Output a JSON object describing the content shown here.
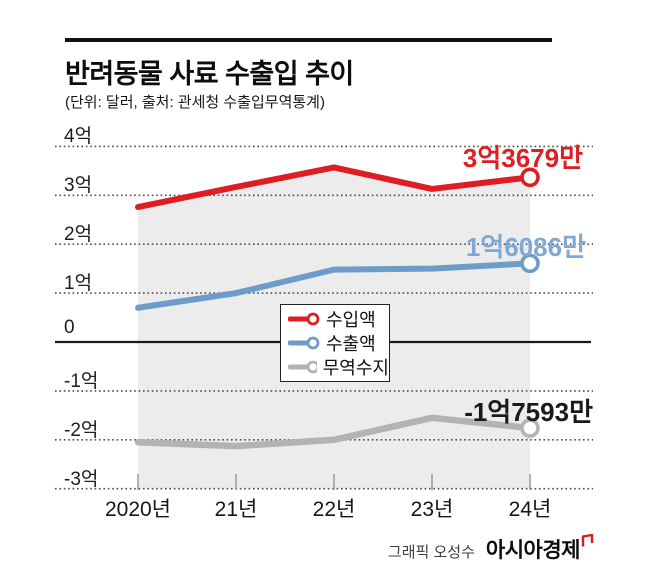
{
  "header": {
    "title": "반려동물 사료 수출입 추이",
    "subtitle": "(단위: 달러, 출처: 관세청 수출입무역통계)"
  },
  "chart_data": {
    "type": "line",
    "unit": "억 달러",
    "categories": [
      "2020년",
      "21년",
      "22년",
      "23년",
      "24년"
    ],
    "series": [
      {
        "name": "수입액",
        "color": "#dd1e22",
        "line_width": 6,
        "values": [
          2.76,
          3.17,
          3.57,
          3.13,
          3.3679
        ],
        "end_label": "3억3679만"
      },
      {
        "name": "수출액",
        "color": "#6e9cc8",
        "line_width": 6,
        "values": [
          0.7,
          1.0,
          1.48,
          1.5,
          1.6086
        ],
        "end_label": "1억6086만"
      },
      {
        "name": "무역수지",
        "color": "#b3b3b3",
        "line_width": 6.5,
        "values": [
          -2.05,
          -2.13,
          -2.0,
          -1.55,
          -1.7593
        ],
        "end_label": "-1억7593만"
      }
    ],
    "y_tick_labels": [
      "4억",
      "3억",
      "2억",
      "1억",
      "0",
      "-1억",
      "-2억",
      "-3억"
    ],
    "y_tick_values": [
      4,
      3,
      2,
      1,
      0,
      -1,
      -2,
      -3
    ],
    "ylim": [
      -3.3,
      4.3
    ],
    "grid": "dotted horizontal, solid zero line",
    "legend_position": "center",
    "area_fill_under_series": "수입액",
    "end_markers": "open circle on last point of each series"
  },
  "colors": {
    "area_fill": "#ececec",
    "gridline": "#4d4d4d",
    "zero_axis": "#1b1b1b",
    "x_tick": "#9e9e9e",
    "imports_label": "#dd1e22",
    "exports_label": "#7ea9d4",
    "balance_label": "#1a1a1a",
    "brand_mark": "#d01e24"
  },
  "credit": {
    "byline": "그래픽 오성수",
    "brand": "아시아경제"
  }
}
